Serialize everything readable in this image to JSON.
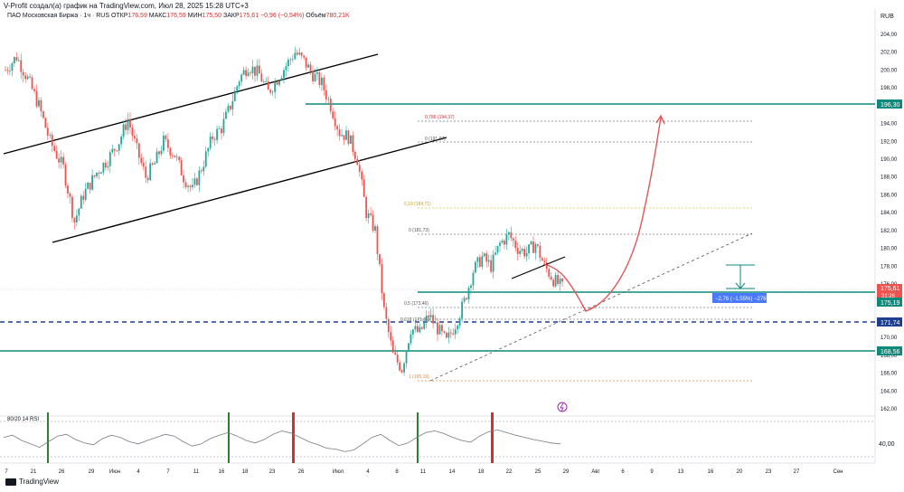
{
  "header": {
    "text": "V-Profit создал(а) график на TradingView.com, Июл 28, 2025 15:28 UTC+3"
  },
  "legend": {
    "symbol": "ПАО Московская Биржа · 1ч · RUS",
    "open_label": "ОТКР",
    "open": "176,59",
    "high_label": "МАКС",
    "high": "176,59",
    "low_label": "МИН",
    "low": "175,50",
    "close_label": "ЗАКР",
    "close": "175,61",
    "change": "−0,96 (−0,54%)",
    "volume_label": "Объём",
    "volume": "780,21K"
  },
  "currency": "RUB",
  "rsi_label": "80/20 14 RSI",
  "footer": {
    "brand": "TradingView"
  },
  "colors": {
    "candle_up": "#26a69a",
    "candle_down": "#ef5350",
    "green_level": "#0e8a7c",
    "blue_level": "#1e3f8f",
    "forecast": "#e05858"
  },
  "chart_data": {
    "type": "candlestick",
    "ylim": [
      162,
      206
    ],
    "y_ticks": [
      "204,00",
      "202,00",
      "200,00",
      "198,00",
      "196,00",
      "194,00",
      "192,00",
      "190,00",
      "188,00",
      "186,00",
      "184,00",
      "182,00",
      "180,00",
      "178,00",
      "176,00",
      "174,00",
      "172,00",
      "170,00",
      "168,00",
      "166,00",
      "164,00",
      "162,00"
    ],
    "x_ticks": [
      "7",
      "21",
      "26",
      "29",
      "Июн",
      "4",
      "7",
      "11",
      "16",
      "18",
      "23",
      "26",
      "Июл",
      "4",
      "8",
      "11",
      "14",
      "18",
      "22",
      "25",
      "29",
      "Авг",
      "6",
      "9",
      "13",
      "16",
      "20",
      "23",
      "27",
      "Сен"
    ],
    "close_path": [
      [
        0,
        200.0
      ],
      [
        5,
        201.5
      ],
      [
        10,
        199.0
      ],
      [
        15,
        196.0
      ],
      [
        20,
        192.0
      ],
      [
        26,
        189.0
      ],
      [
        31,
        183.0
      ],
      [
        35,
        186.0
      ],
      [
        41,
        188.5
      ],
      [
        46,
        190.0
      ],
      [
        51,
        192.0
      ],
      [
        55,
        194.5
      ],
      [
        59,
        191.0
      ],
      [
        63,
        188.0
      ],
      [
        67,
        189.5
      ],
      [
        71,
        192.0
      ],
      [
        76,
        190.5
      ],
      [
        80,
        188.0
      ],
      [
        84,
        186.5
      ],
      [
        88,
        189.0
      ],
      [
        93,
        192.5
      ],
      [
        97,
        193.5
      ],
      [
        101,
        196.0
      ],
      [
        105,
        199.0
      ],
      [
        109,
        200.5
      ],
      [
        114,
        199.5
      ],
      [
        118,
        197.5
      ],
      [
        122,
        199.0
      ],
      [
        126,
        200.5
      ],
      [
        130,
        202.0
      ],
      [
        134,
        201.0
      ],
      [
        138,
        199.5
      ],
      [
        142,
        198.5
      ],
      [
        146,
        196.0
      ],
      [
        150,
        193.0
      ],
      [
        154,
        192.5
      ],
      [
        158,
        190.0
      ],
      [
        162,
        184.0
      ],
      [
        166,
        182.0
      ],
      [
        170,
        173.0
      ],
      [
        174,
        168.0
      ],
      [
        178,
        166.5
      ],
      [
        182,
        171.0
      ],
      [
        186,
        170.5
      ],
      [
        190,
        172.5
      ],
      [
        194,
        171.0
      ],
      [
        198,
        169.5
      ],
      [
        202,
        171.5
      ],
      [
        206,
        174.0
      ],
      [
        210,
        177.5
      ],
      [
        214,
        179.0
      ],
      [
        218,
        178.0
      ],
      [
        222,
        180.5
      ],
      [
        226,
        181.5
      ],
      [
        230,
        180.0
      ],
      [
        234,
        179.5
      ],
      [
        238,
        180.5
      ],
      [
        242,
        178.0
      ],
      [
        246,
        176.5
      ],
      [
        250,
        175.6
      ]
    ],
    "rsi": {
      "ylim": [
        0,
        100
      ],
      "levels": [
        80,
        20
      ],
      "tick": "40,00",
      "values": [
        55,
        60,
        48,
        40,
        32,
        45,
        58,
        62,
        50,
        42,
        38,
        52,
        60,
        55,
        45,
        40,
        48,
        55,
        62,
        58,
        45,
        35,
        40,
        52,
        60,
        66,
        58,
        48,
        42,
        50,
        62,
        70,
        65,
        55,
        45,
        38,
        30,
        28,
        22,
        26,
        40,
        55,
        62,
        48,
        36,
        42,
        55,
        66,
        70,
        64,
        55,
        48,
        44,
        58,
        68,
        72,
        66,
        60,
        55,
        50,
        46,
        42,
        40
      ]
    },
    "level_labels": [
      "196,30",
      "175,61",
      "175,19",
      "171,74",
      "168,56"
    ],
    "countdown": "31:26",
    "fib_labels": [
      "0,786 (194,37)",
      "0 (191,97)",
      "0,19 (184,71)",
      "0 (181,73)",
      "0,5 (173,46)",
      "0,618 (171,05)",
      "1 (165,19)"
    ],
    "measure_label": "−2,76 (−1,55%) −276"
  }
}
